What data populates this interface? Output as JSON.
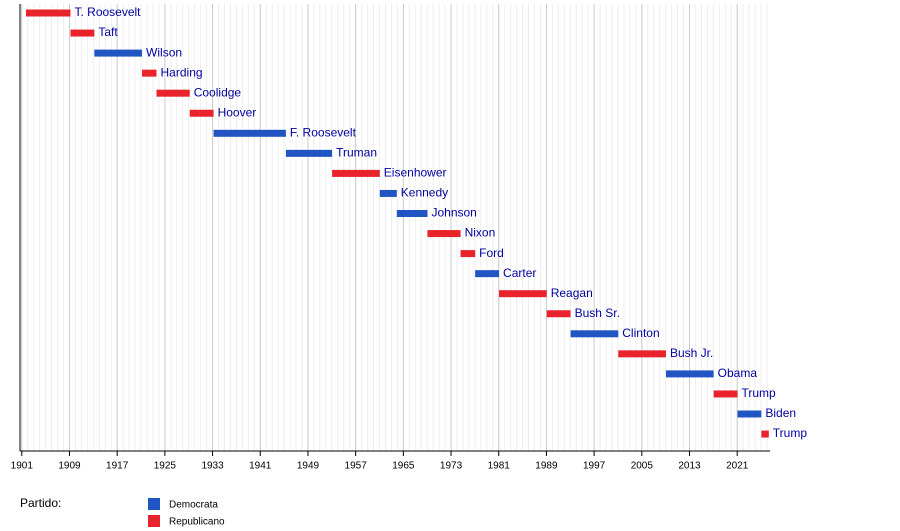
{
  "chart_data": {
    "type": "timeline",
    "categories": [
      "T. Roosevelt",
      "Taft",
      "Wilson",
      "Harding",
      "Coolidge",
      "Hoover",
      "F. Roosevelt",
      "Truman",
      "Eisenhower",
      "Kennedy",
      "Johnson",
      "Nixon",
      "Ford",
      "Carter",
      "Reagan",
      "Bush Sr.",
      "Clinton",
      "Bush Jr.",
      "Obama",
      "Trump",
      "Biden",
      "Trump"
    ],
    "start": [
      1901.7,
      1909.17,
      1913.17,
      1921.17,
      1923.6,
      1929.17,
      1933.17,
      1945.3,
      1953.05,
      1961.05,
      1963.9,
      1969.05,
      1974.6,
      1977.05,
      1981.05,
      1989.05,
      1993.05,
      2001.05,
      2009.05,
      2017.05,
      2021.05,
      2025.05
    ],
    "end": [
      1909.17,
      1913.17,
      1921.17,
      1923.6,
      1929.17,
      1933.17,
      1945.3,
      1953.05,
      1961.05,
      1963.9,
      1969.05,
      1974.6,
      1977.05,
      1981.05,
      1989.05,
      1993.05,
      2001.05,
      2009.05,
      2017.05,
      2021.05,
      2025.05,
      2026.3
    ],
    "party": [
      "Republicano",
      "Republicano",
      "Democrata",
      "Republicano",
      "Republicano",
      "Republicano",
      "Democrata",
      "Democrata",
      "Republicano",
      "Democrata",
      "Democrata",
      "Republicano",
      "Republicano",
      "Democrata",
      "Republicano",
      "Republicano",
      "Democrata",
      "Republicano",
      "Democrata",
      "Republicano",
      "Democrata",
      "Republicano"
    ],
    "legend_title": "Partido:",
    "series": [
      {
        "name": "Democrata",
        "color": "#2255c4"
      },
      {
        "name": "Republicano",
        "color": "#e8232b"
      }
    ],
    "xlim": [
      1900.7,
      2026.5
    ],
    "xticks": [
      1901,
      1909,
      1917,
      1925,
      1933,
      1941,
      1949,
      1957,
      1965,
      1973,
      1981,
      1989,
      1997,
      2005,
      2013,
      2021
    ],
    "grid": true
  }
}
